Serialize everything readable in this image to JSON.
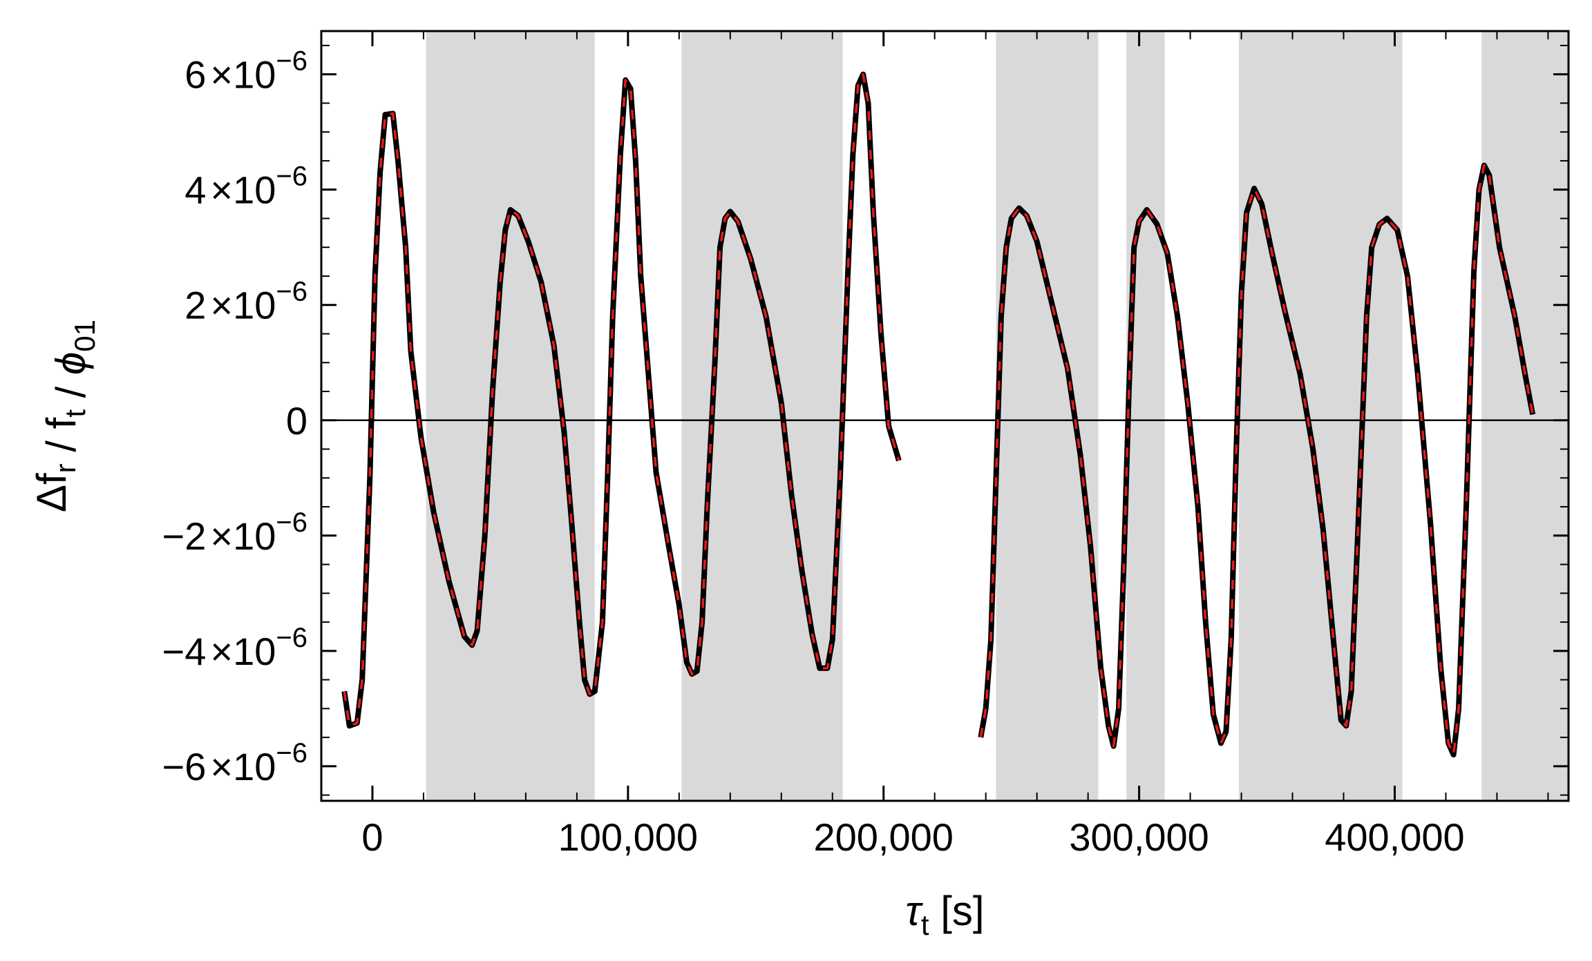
{
  "chart_data": {
    "type": "line",
    "title": "",
    "xlabel": {
      "main": "τ",
      "sub": "t",
      "unit": " [s]"
    },
    "ylabel": {
      "parts": [
        {
          "t": "Δf",
          "sub": "r"
        },
        {
          "t": " / f",
          "sub": "t"
        },
        {
          "t": " / ",
          "sub": ""
        },
        {
          "t": "ϕ",
          "sub": "01"
        }
      ]
    },
    "xlim": [
      -20000,
      468000
    ],
    "ylim": [
      -6.6e-06,
      6.75e-06
    ],
    "grid": false,
    "legend": "none",
    "x_ticks": [
      {
        "value": 0,
        "label": "0"
      },
      {
        "value": 100000,
        "label": "100,000"
      },
      {
        "value": 200000,
        "label": "200,000"
      },
      {
        "value": 300000,
        "label": "300,000"
      },
      {
        "value": 400000,
        "label": "400,000"
      }
    ],
    "y_ticks": [
      {
        "value": 6e-06,
        "mant": "6",
        "times": "×10",
        "exp": "−6"
      },
      {
        "value": 4e-06,
        "mant": "4",
        "times": "×10",
        "exp": "−6"
      },
      {
        "value": 2e-06,
        "mant": "2",
        "times": "×10",
        "exp": "−6"
      },
      {
        "value": 0,
        "mant": "0",
        "times": "",
        "exp": ""
      },
      {
        "value": -2e-06,
        "mant": "−2",
        "times": "×10",
        "exp": "−6"
      },
      {
        "value": -4e-06,
        "mant": "−4",
        "times": "×10",
        "exp": "−6"
      },
      {
        "value": -6e-06,
        "mant": "−6",
        "times": "×10",
        "exp": "−6"
      }
    ],
    "shaded_regions": [
      [
        21000,
        87000
      ],
      [
        121000,
        184000
      ],
      [
        244000,
        284000
      ],
      [
        295000,
        310000
      ],
      [
        339000,
        403000
      ],
      [
        434000,
        468000
      ]
    ],
    "colors": {
      "shade": "#d9d9d9",
      "line": "#000000",
      "overlay": "#e41a1c",
      "zero_line": "#000000"
    },
    "series": [
      {
        "segments": [
          [
            [
              -11000,
              -4.7e-06
            ],
            [
              -9000,
              -5.3e-06
            ],
            [
              -6000,
              -5.25e-06
            ],
            [
              -4000,
              -4.5e-06
            ],
            [
              -1000,
              -1e-06
            ],
            [
              1000,
              2.5e-06
            ],
            [
              3000,
              4.3e-06
            ],
            [
              5000,
              5.3e-06
            ],
            [
              8000,
              5.32e-06
            ],
            [
              10000,
              4.5e-06
            ],
            [
              13000,
              3e-06
            ],
            [
              15000,
              1.2e-06
            ],
            [
              19000,
              -3e-07
            ],
            [
              24000,
              -1.6e-06
            ],
            [
              30000,
              -2.8e-06
            ],
            [
              36000,
              -3.75e-06
            ],
            [
              39000,
              -3.9e-06
            ],
            [
              41000,
              -3.65e-06
            ],
            [
              44000,
              -2e-06
            ],
            [
              47000,
              5e-07
            ],
            [
              50000,
              2.4e-06
            ],
            [
              52000,
              3.3e-06
            ],
            [
              54000,
              3.65e-06
            ],
            [
              57000,
              3.55e-06
            ],
            [
              61000,
              3.1e-06
            ],
            [
              66000,
              2.4e-06
            ],
            [
              71000,
              1.3e-06
            ],
            [
              75000,
              -2e-07
            ],
            [
              78000,
              -1.8e-06
            ],
            [
              81000,
              -3.5e-06
            ],
            [
              83000,
              -4.5e-06
            ],
            [
              85000,
              -4.75e-06
            ],
            [
              87000,
              -4.7e-06
            ],
            [
              90000,
              -3.5e-06
            ],
            [
              92000,
              -1e-06
            ],
            [
              94000,
              1.8e-06
            ],
            [
              97000,
              4.6e-06
            ],
            [
              99000,
              5.9e-06
            ],
            [
              101000,
              5.75e-06
            ],
            [
              103000,
              4.5e-06
            ],
            [
              105000,
              2.5e-06
            ],
            [
              108000,
              8e-07
            ],
            [
              111000,
              -9e-07
            ],
            [
              116000,
              -2.2e-06
            ],
            [
              120000,
              -3.2e-06
            ],
            [
              123000,
              -4.2e-06
            ],
            [
              125000,
              -4.4e-06
            ],
            [
              127000,
              -4.35e-06
            ],
            [
              129000,
              -3.5e-06
            ],
            [
              131000,
              -1.5e-06
            ],
            [
              134000,
              1e-06
            ],
            [
              136000,
              3e-06
            ],
            [
              138000,
              3.5e-06
            ],
            [
              140000,
              3.62e-06
            ],
            [
              143000,
              3.45e-06
            ],
            [
              148000,
              2.8e-06
            ],
            [
              154000,
              1.8e-06
            ],
            [
              160000,
              3e-07
            ],
            [
              164000,
              -1.3e-06
            ],
            [
              168000,
              -2.6e-06
            ],
            [
              172000,
              -3.7e-06
            ],
            [
              175000,
              -4.3e-06
            ],
            [
              178000,
              -4.3e-06
            ],
            [
              180000,
              -3.8e-06
            ],
            [
              183000,
              -1e-06
            ],
            [
              186000,
              2.5e-06
            ],
            [
              188000,
              4.6e-06
            ],
            [
              190000,
              5.8e-06
            ],
            [
              192000,
              6e-06
            ],
            [
              194000,
              5.5e-06
            ],
            [
              196000,
              3.6e-06
            ],
            [
              199000,
              1.5e-06
            ],
            [
              202000,
              -1e-07
            ],
            [
              206000,
              -7e-07
            ]
          ],
          [
            [
              238000,
              -5.5e-06
            ],
            [
              240000,
              -5e-06
            ],
            [
              242000,
              -3.8e-06
            ],
            [
              244000,
              -1e-06
            ],
            [
              246000,
              1.8e-06
            ],
            [
              248000,
              3e-06
            ],
            [
              250000,
              3.5e-06
            ],
            [
              253000,
              3.68e-06
            ],
            [
              256000,
              3.55e-06
            ],
            [
              260000,
              3.1e-06
            ],
            [
              266000,
              2e-06
            ],
            [
              272000,
              9e-07
            ],
            [
              277000,
              -6e-07
            ],
            [
              281000,
              -2.2e-06
            ],
            [
              285000,
              -4.3e-06
            ],
            [
              288000,
              -5.3e-06
            ],
            [
              290000,
              -5.65e-06
            ],
            [
              292000,
              -5e-06
            ],
            [
              294000,
              -2.5e-06
            ],
            [
              296000,
              5e-07
            ],
            [
              298000,
              3e-06
            ],
            [
              300000,
              3.45e-06
            ],
            [
              303000,
              3.65e-06
            ],
            [
              307000,
              3.4e-06
            ],
            [
              311000,
              2.9e-06
            ],
            [
              315000,
              1.8e-06
            ],
            [
              319000,
              3e-07
            ],
            [
              323000,
              -1.5e-06
            ],
            [
              326000,
              -3.5e-06
            ],
            [
              329000,
              -5.1e-06
            ],
            [
              332000,
              -5.6e-06
            ],
            [
              334000,
              -5.4e-06
            ],
            [
              336000,
              -3.8e-06
            ],
            [
              338000,
              -5e-07
            ],
            [
              340000,
              2.2e-06
            ],
            [
              342000,
              3.6e-06
            ],
            [
              345000,
              4.02e-06
            ],
            [
              348000,
              3.75e-06
            ],
            [
              352000,
              2.9e-06
            ],
            [
              357000,
              1.9e-06
            ],
            [
              363000,
              8e-07
            ],
            [
              368000,
              -5e-07
            ],
            [
              372000,
              -1.9e-06
            ],
            [
              376000,
              -3.8e-06
            ],
            [
              379000,
              -5.2e-06
            ],
            [
              381000,
              -5.3e-06
            ],
            [
              383000,
              -4.7e-06
            ],
            [
              386000,
              -1.5e-06
            ],
            [
              389000,
              1.8e-06
            ],
            [
              391000,
              3e-06
            ],
            [
              394000,
              3.4e-06
            ],
            [
              397000,
              3.5e-06
            ],
            [
              401000,
              3.3e-06
            ],
            [
              405000,
              2.5e-06
            ],
            [
              409000,
              8e-07
            ],
            [
              414000,
              -1.8e-06
            ],
            [
              418000,
              -4.3e-06
            ],
            [
              421000,
              -5.6e-06
            ],
            [
              423000,
              -5.8e-06
            ],
            [
              425000,
              -5e-06
            ],
            [
              428000,
              -1.5e-06
            ],
            [
              431000,
              2.6e-06
            ],
            [
              433000,
              4e-06
            ],
            [
              435000,
              4.42e-06
            ],
            [
              437000,
              4.25e-06
            ],
            [
              441000,
              3e-06
            ],
            [
              447000,
              1.8e-06
            ],
            [
              451000,
              8e-07
            ],
            [
              454000,
              1e-07
            ]
          ]
        ]
      }
    ]
  }
}
